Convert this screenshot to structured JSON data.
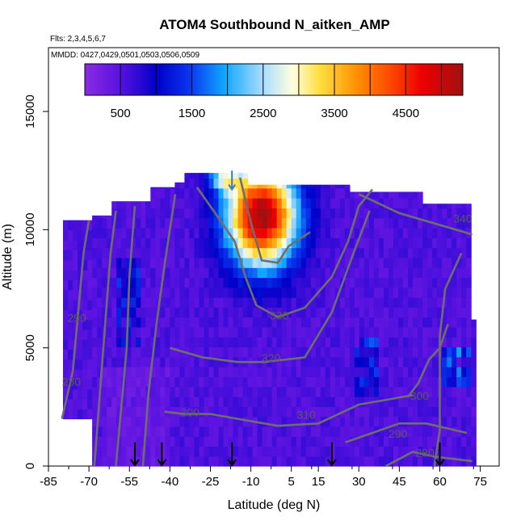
{
  "chart_data": {
    "type": "heatmap",
    "title": "ATOM4 Southbound N_aitken_AMP",
    "subtitle_flights": "Flts: 2,3,4,5,6,7",
    "subtitle_dates": "MMDD: 0427,0429,0501,0503,0506,0509",
    "xlabel": "Latitude (deg N)",
    "ylabel": "Altitude (m)",
    "xlim": [
      -85,
      82
    ],
    "ylim": [
      0,
      17700
    ],
    "x_ticks": [
      -85,
      -70,
      -55,
      -40,
      -25,
      -10,
      5,
      15,
      30,
      45,
      60,
      75
    ],
    "x_tick_labels": [
      "-85",
      "-70",
      "-55",
      "-40",
      "-25",
      "-10",
      "5",
      "15",
      "30",
      "45",
      "60",
      "75"
    ],
    "y_ticks": [
      0,
      5000,
      10000,
      15000
    ],
    "y_tick_labels": [
      "0",
      "5000",
      "10000",
      "15000"
    ],
    "colorbar": {
      "range": [
        0,
        5300
      ],
      "ticks": [
        500,
        1500,
        2500,
        3500,
        4500
      ],
      "tick_labels": [
        "500",
        "1500",
        "2500",
        "3500",
        "4500"
      ]
    },
    "contour_labels": [
      {
        "text": "290",
        "lat": -78,
        "alt": 6100
      },
      {
        "text": "280",
        "lat": -80,
        "alt": 3400
      },
      {
        "text": "300",
        "lat": -36,
        "alt": 2100
      },
      {
        "text": "310",
        "lat": 7,
        "alt": 2000
      },
      {
        "text": "320",
        "lat": -6,
        "alt": 4400
      },
      {
        "text": "330",
        "lat": -3,
        "alt": 6200
      },
      {
        "text": "340",
        "lat": 65,
        "alt": 10300
      },
      {
        "text": "300",
        "lat": 49,
        "alt": 2800
      },
      {
        "text": "290",
        "lat": 41,
        "alt": 1200
      },
      {
        "text": "280",
        "lat": 51,
        "alt": 400
      }
    ],
    "flight_arrows_lat": [
      -53,
      -43,
      -17,
      20,
      60
    ],
    "top_arrow_lat": -17,
    "grid": false
  }
}
